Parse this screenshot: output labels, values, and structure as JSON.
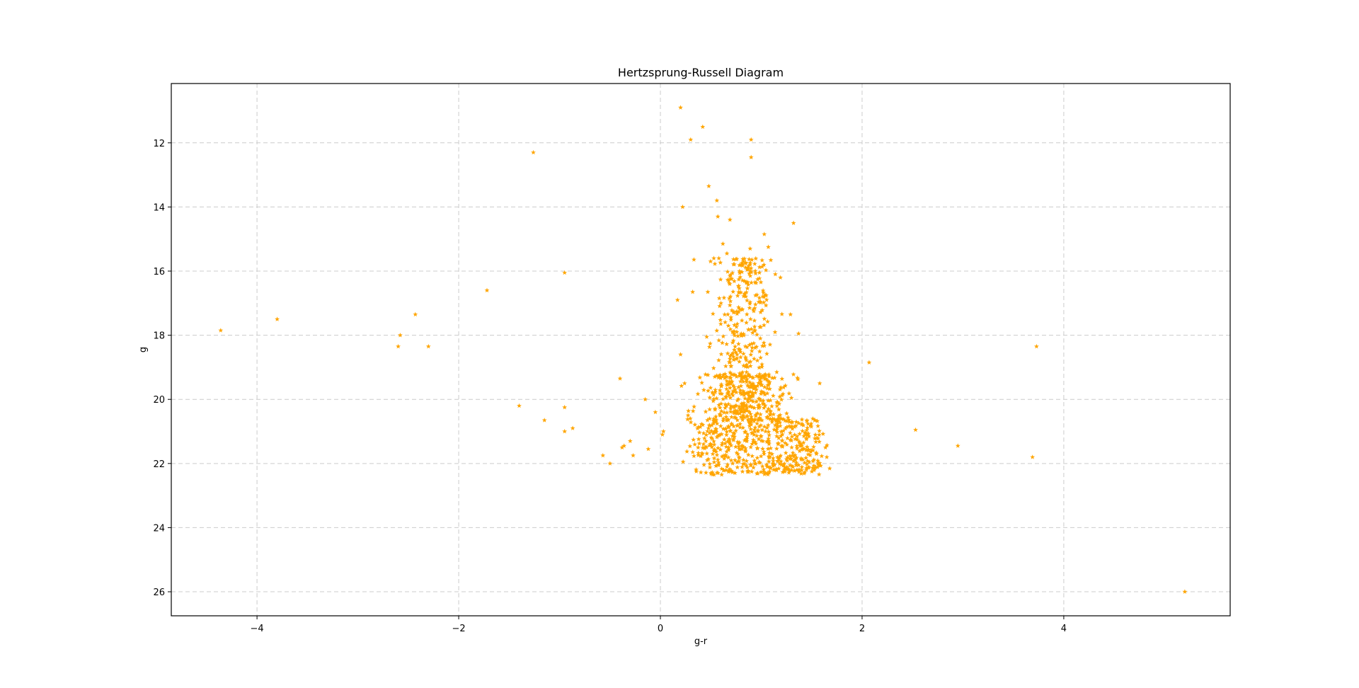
{
  "chart_data": {
    "type": "scatter",
    "title": "Hertzsprung-Russell Diagram",
    "xlabel": "g-r",
    "ylabel": "g",
    "xlim": [
      -4.85,
      5.65
    ],
    "ylim": [
      26.75,
      10.15
    ],
    "y_inverted": true,
    "grid": true,
    "grid_style": "dashed",
    "marker": "star",
    "marker_color": "#ffa500",
    "xticks": [
      -4,
      -2,
      0,
      2,
      4
    ],
    "yticks": [
      12,
      14,
      16,
      18,
      20,
      22,
      24,
      26
    ],
    "xtick_labels": [
      "−4",
      "−2",
      "0",
      "2",
      "4"
    ],
    "ytick_labels": [
      "12",
      "14",
      "16",
      "18",
      "20",
      "22",
      "24",
      "26"
    ],
    "points": {
      "x": [
        -4.36,
        -3.8,
        -2.58,
        -2.6,
        -2.3,
        -2.43,
        -1.72,
        -1.26,
        -0.95,
        -1.4,
        -1.15,
        -0.95,
        -0.95,
        -0.87,
        -0.4,
        -0.57,
        -0.5,
        -0.3,
        -0.36,
        -0.38,
        -0.27,
        -0.15,
        -0.12,
        -0.05,
        0.02,
        0.03,
        0.2,
        0.3,
        0.42,
        0.56,
        0.9,
        0.9,
        0.48,
        0.22,
        0.57,
        0.69,
        0.53,
        0.47,
        0.17,
        0.32,
        0.2,
        0.24,
        0.46,
        1.03,
        1.32,
        1.07,
        0.89,
        0.62,
        0.66,
        0.58,
        1.14,
        1.19,
        1.04,
        1.29,
        1.37,
        1.58,
        2.07,
        2.53,
        2.95,
        3.69,
        3.73,
        5.2,
        1.65
      ],
      "y": [
        17.85,
        17.5,
        18.0,
        18.35,
        18.35,
        17.35,
        16.6,
        12.3,
        16.05,
        20.2,
        20.65,
        20.25,
        21.0,
        20.9,
        19.35,
        21.75,
        22.0,
        21.3,
        21.45,
        21.5,
        21.75,
        20.0,
        21.55,
        20.4,
        21.1,
        21.0,
        10.9,
        11.9,
        11.5,
        13.8,
        11.9,
        12.45,
        13.35,
        14.0,
        14.3,
        14.4,
        15.6,
        16.65,
        16.9,
        16.65,
        18.6,
        19.5,
        18.05,
        14.85,
        14.5,
        15.25,
        15.3,
        15.15,
        15.45,
        15.6,
        16.1,
        16.2,
        16.75,
        17.35,
        17.95,
        19.5,
        18.85,
        20.95,
        21.45,
        21.8,
        18.35,
        26.0,
        21.8
      ]
    },
    "dense_region": {
      "x_range": [
        -0.1,
        1.7
      ],
      "y_range": [
        15.6,
        22.7
      ],
      "count": 1100
    }
  }
}
